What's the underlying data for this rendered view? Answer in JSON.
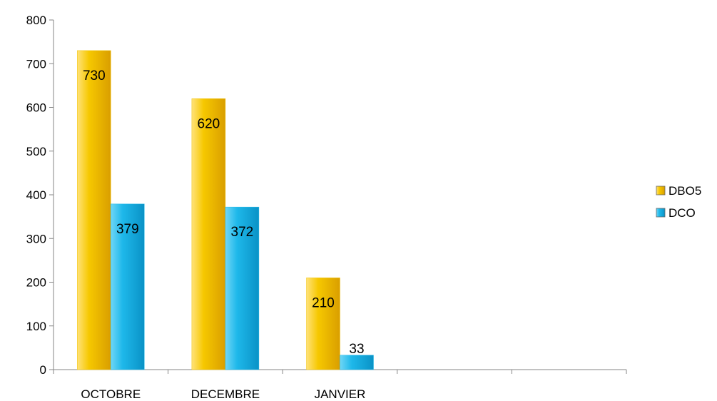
{
  "chart_data": {
    "type": "bar",
    "categories": [
      "OCTOBRE",
      "DECEMBRE",
      "JANVIER",
      "",
      ""
    ],
    "series": [
      {
        "name": "DBO5",
        "values": [
          730,
          620,
          210,
          null,
          null
        ],
        "color": "#F2C200"
      },
      {
        "name": "DCO",
        "values": [
          379,
          372,
          33,
          null,
          null
        ],
        "color": "#1FB7E8"
      }
    ],
    "ylim": [
      0,
      800
    ],
    "yticks": [
      0,
      100,
      200,
      300,
      400,
      500,
      600,
      700,
      800
    ],
    "grid": false,
    "legend_position": "right"
  }
}
